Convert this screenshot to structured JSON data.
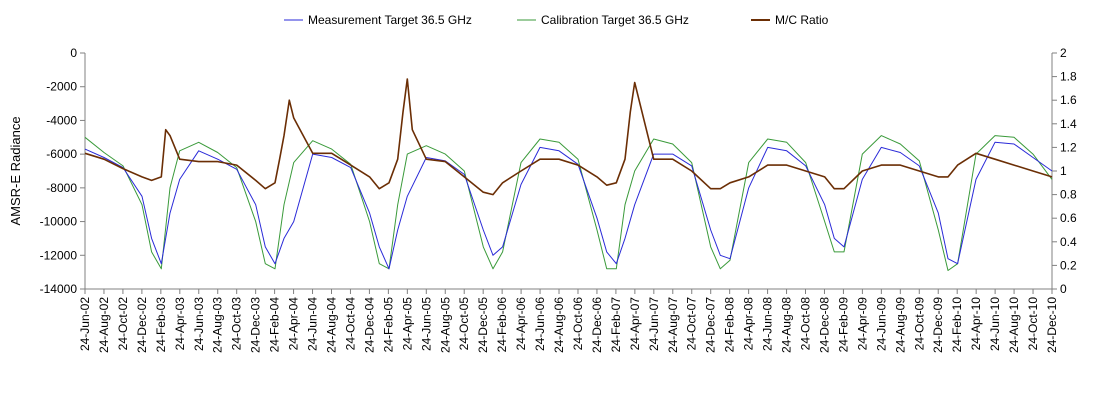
{
  "chart_data": {
    "type": "line",
    "title": "",
    "ylabel": "AMSR-E Radiance",
    "y2label": "",
    "ylim": [
      -14000,
      0
    ],
    "y2lim": [
      0,
      2
    ],
    "yticks": [
      0,
      -2000,
      -4000,
      -6000,
      -8000,
      -10000,
      -12000,
      -14000
    ],
    "y2ticks": [
      2,
      1.8,
      1.6,
      1.4,
      1.2,
      1,
      0.8,
      0.6,
      0.4,
      0.2,
      0
    ],
    "x_start": "2002-06-24",
    "x_end": "2010-12-24",
    "xtick_labels": [
      "24-Jun-02",
      "24-Aug-02",
      "24-Oct-02",
      "24-Dec-02",
      "24-Feb-03",
      "24-Apr-03",
      "24-Jun-03",
      "24-Aug-03",
      "24-Oct-03",
      "24-Dec-03",
      "24-Feb-04",
      "24-Apr-04",
      "24-Jun-04",
      "24-Aug-04",
      "24-Oct-04",
      "24-Dec-04",
      "24-Feb-05",
      "24-Apr-05",
      "24-Jun-05",
      "24-Aug-05",
      "24-Oct-05",
      "24-Dec-05",
      "24-Feb-06",
      "24-Apr-06",
      "24-Jun-06",
      "24-Aug-06",
      "24-Oct-06",
      "24-Dec-06",
      "24-Feb-07",
      "24-Apr-07",
      "24-Jun-07",
      "24-Aug-07",
      "24-Oct-07",
      "24-Dec-07",
      "24-Feb-08",
      "24-Apr-08",
      "24-Jun-08",
      "24-Aug-08",
      "24-Oct-08",
      "24-Dec-08",
      "24-Feb-09",
      "24-Apr-09",
      "24-Jun-09",
      "24-Aug-09",
      "24-Oct-09",
      "24-Dec-09",
      "24-Feb-10",
      "24-Apr-10",
      "24-Jun-10",
      "24-Aug-10",
      "24-Oct-10",
      "24-Dec-10"
    ],
    "legend_position": "top",
    "grid": false,
    "series": [
      {
        "name": "Measurement Target 36.5 GHz",
        "color": "#2a2ad8",
        "axis": "left",
        "x": [
          "2002-06-24",
          "2002-08-24",
          "2002-10-24",
          "2002-12-24",
          "2003-01-24",
          "2003-02-24",
          "2003-03-24",
          "2003-04-24",
          "2003-06-24",
          "2003-08-24",
          "2003-10-24",
          "2003-12-24",
          "2004-01-24",
          "2004-02-24",
          "2004-03-24",
          "2004-04-24",
          "2004-06-24",
          "2004-08-24",
          "2004-10-24",
          "2004-12-24",
          "2005-01-24",
          "2005-02-24",
          "2005-03-24",
          "2005-04-24",
          "2005-06-24",
          "2005-08-24",
          "2005-10-24",
          "2005-12-24",
          "2006-01-24",
          "2006-02-24",
          "2006-04-24",
          "2006-06-24",
          "2006-08-24",
          "2006-10-24",
          "2006-12-24",
          "2007-01-24",
          "2007-02-24",
          "2007-03-24",
          "2007-04-24",
          "2007-06-24",
          "2007-08-24",
          "2007-10-24",
          "2007-12-24",
          "2008-01-24",
          "2008-02-24",
          "2008-04-24",
          "2008-06-24",
          "2008-08-24",
          "2008-10-24",
          "2008-12-24",
          "2009-01-24",
          "2009-02-24",
          "2009-04-24",
          "2009-06-24",
          "2009-08-24",
          "2009-10-24",
          "2009-12-24",
          "2010-01-24",
          "2010-02-24",
          "2010-04-24",
          "2010-06-24",
          "2010-08-24",
          "2010-10-24",
          "2010-12-24"
        ],
        "y": [
          -5700,
          -6200,
          -6800,
          -8500,
          -11000,
          -12500,
          -9500,
          -7500,
          -5800,
          -6300,
          -6900,
          -9000,
          -11500,
          -12500,
          -11000,
          -10000,
          -6000,
          -6200,
          -6800,
          -9500,
          -11500,
          -12800,
          -10500,
          -8500,
          -6200,
          -6400,
          -7200,
          -10500,
          -12000,
          -11500,
          -7800,
          -5600,
          -5800,
          -6600,
          -9800,
          -11800,
          -12500,
          -11000,
          -9000,
          -6000,
          -6000,
          -6700,
          -10500,
          -12000,
          -12200,
          -8000,
          -5600,
          -5800,
          -6700,
          -9000,
          -11000,
          -11500,
          -7500,
          -5600,
          -5900,
          -6700,
          -9500,
          -12200,
          -12500,
          -7500,
          -5300,
          -5400,
          -6200,
          -7000
        ]
      },
      {
        "name": "Calibration Target 36.5 GHz",
        "color": "#3a9a3a",
        "axis": "left",
        "x": [
          "2002-06-24",
          "2002-08-24",
          "2002-10-24",
          "2002-12-24",
          "2003-01-24",
          "2003-02-24",
          "2003-03-24",
          "2003-04-24",
          "2003-06-24",
          "2003-08-24",
          "2003-10-24",
          "2003-12-24",
          "2004-01-24",
          "2004-02-24",
          "2004-03-24",
          "2004-04-24",
          "2004-06-24",
          "2004-08-24",
          "2004-10-24",
          "2004-12-24",
          "2005-01-24",
          "2005-02-24",
          "2005-03-24",
          "2005-04-24",
          "2005-06-24",
          "2005-08-24",
          "2005-10-24",
          "2005-12-24",
          "2006-01-24",
          "2006-02-24",
          "2006-04-24",
          "2006-06-24",
          "2006-08-24",
          "2006-10-24",
          "2006-12-24",
          "2007-01-24",
          "2007-02-24",
          "2007-03-24",
          "2007-04-24",
          "2007-06-24",
          "2007-08-24",
          "2007-10-24",
          "2007-12-24",
          "2008-01-24",
          "2008-02-24",
          "2008-04-24",
          "2008-06-24",
          "2008-08-24",
          "2008-10-24",
          "2008-12-24",
          "2009-01-24",
          "2009-02-24",
          "2009-04-24",
          "2009-06-24",
          "2009-08-24",
          "2009-10-24",
          "2009-12-24",
          "2010-01-24",
          "2010-02-24",
          "2010-04-24",
          "2010-06-24",
          "2010-08-24",
          "2010-10-24",
          "2010-12-24"
        ],
        "y": [
          -5000,
          -5900,
          -6700,
          -9000,
          -11800,
          -12800,
          -8000,
          -5800,
          -5300,
          -5900,
          -6800,
          -10000,
          -12500,
          -12800,
          -9000,
          -6500,
          -5200,
          -5700,
          -6600,
          -10000,
          -12500,
          -12800,
          -9000,
          -6000,
          -5500,
          -6000,
          -7000,
          -11500,
          -12800,
          -11800,
          -6500,
          -5100,
          -5300,
          -6300,
          -10500,
          -12800,
          -12800,
          -9000,
          -7000,
          -5100,
          -5400,
          -6500,
          -11500,
          -12800,
          -12300,
          -6500,
          -5100,
          -5300,
          -6500,
          -10000,
          -11800,
          -11800,
          -6000,
          -4900,
          -5400,
          -6400,
          -10500,
          -12900,
          -12500,
          -6000,
          -4900,
          -5000,
          -6000,
          -7500
        ]
      },
      {
        "name": "M/C Ratio",
        "color": "#6b2e05",
        "axis": "right",
        "x": [
          "2002-06-24",
          "2002-08-24",
          "2002-10-24",
          "2002-12-24",
          "2003-01-24",
          "2003-02-24",
          "2003-03-10",
          "2003-03-24",
          "2003-04-24",
          "2003-06-24",
          "2003-08-24",
          "2003-10-24",
          "2003-12-24",
          "2004-01-24",
          "2004-02-24",
          "2004-03-10",
          "2004-03-24",
          "2004-04-10",
          "2004-04-24",
          "2004-06-24",
          "2004-08-24",
          "2004-10-24",
          "2004-12-24",
          "2005-01-24",
          "2005-02-24",
          "2005-03-24",
          "2005-04-10",
          "2005-04-24",
          "2005-05-10",
          "2005-06-24",
          "2005-08-24",
          "2005-10-24",
          "2005-12-24",
          "2006-01-24",
          "2006-02-24",
          "2006-04-24",
          "2006-06-24",
          "2006-08-24",
          "2006-10-24",
          "2006-12-24",
          "2007-01-24",
          "2007-02-24",
          "2007-03-24",
          "2007-04-10",
          "2007-04-24",
          "2007-06-24",
          "2007-08-24",
          "2007-10-24",
          "2007-12-24",
          "2008-01-24",
          "2008-02-24",
          "2008-04-24",
          "2008-06-24",
          "2008-08-24",
          "2008-10-24",
          "2008-12-24",
          "2009-01-24",
          "2009-02-24",
          "2009-04-24",
          "2009-06-24",
          "2009-08-24",
          "2009-10-24",
          "2009-12-24",
          "2010-01-24",
          "2010-02-24",
          "2010-04-24",
          "2010-06-24",
          "2010-08-24",
          "2010-10-24",
          "2010-12-24"
        ],
        "y": [
          1.15,
          1.1,
          1.02,
          0.95,
          0.92,
          0.95,
          1.35,
          1.3,
          1.1,
          1.08,
          1.08,
          1.05,
          0.92,
          0.85,
          0.9,
          1.1,
          1.3,
          1.6,
          1.45,
          1.15,
          1.15,
          1.05,
          0.95,
          0.85,
          0.9,
          1.1,
          1.5,
          1.78,
          1.35,
          1.1,
          1.08,
          0.95,
          0.82,
          0.8,
          0.9,
          1.0,
          1.1,
          1.1,
          1.05,
          0.95,
          0.88,
          0.9,
          1.1,
          1.5,
          1.75,
          1.1,
          1.1,
          1.0,
          0.85,
          0.85,
          0.9,
          0.95,
          1.05,
          1.05,
          1.0,
          0.95,
          0.85,
          0.85,
          1.0,
          1.05,
          1.05,
          1.0,
          0.95,
          0.95,
          1.05,
          1.15,
          1.1,
          1.05,
          1.0,
          0.95
        ]
      }
    ]
  }
}
